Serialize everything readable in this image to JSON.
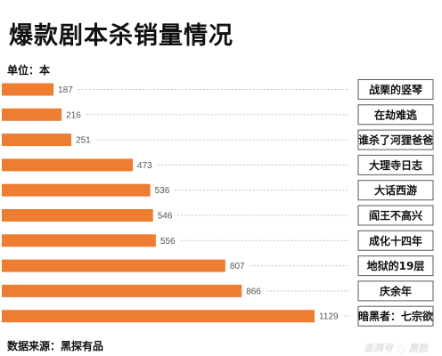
{
  "title": "爆款剧本杀销量情况",
  "unit_label": "单位：本",
  "source_label": "数据来源：黑探有品",
  "watermark": "澎湃号 ○ 黑数",
  "colors": {
    "bar": "#ed7d31",
    "leader": "#bfbfbf",
    "label_border": "#595959"
  },
  "chart_data": {
    "type": "bar",
    "orientation": "horizontal",
    "categories": [
      "战栗的竖琴",
      "在劫难逃",
      "谁杀了河狸爸爸",
      "大理寺日志",
      "大话西游",
      "阎王不高兴",
      "成化十四年",
      "地狱的19层",
      "庆余年",
      "暗黑者：七宗欲"
    ],
    "values": [
      187,
      216,
      251,
      473,
      536,
      546,
      556,
      807,
      866,
      1129
    ],
    "title": "爆款剧本杀销量情况",
    "unit": "单位：本",
    "xlim": [
      0,
      1150
    ],
    "grid": false,
    "value_labels": true
  }
}
